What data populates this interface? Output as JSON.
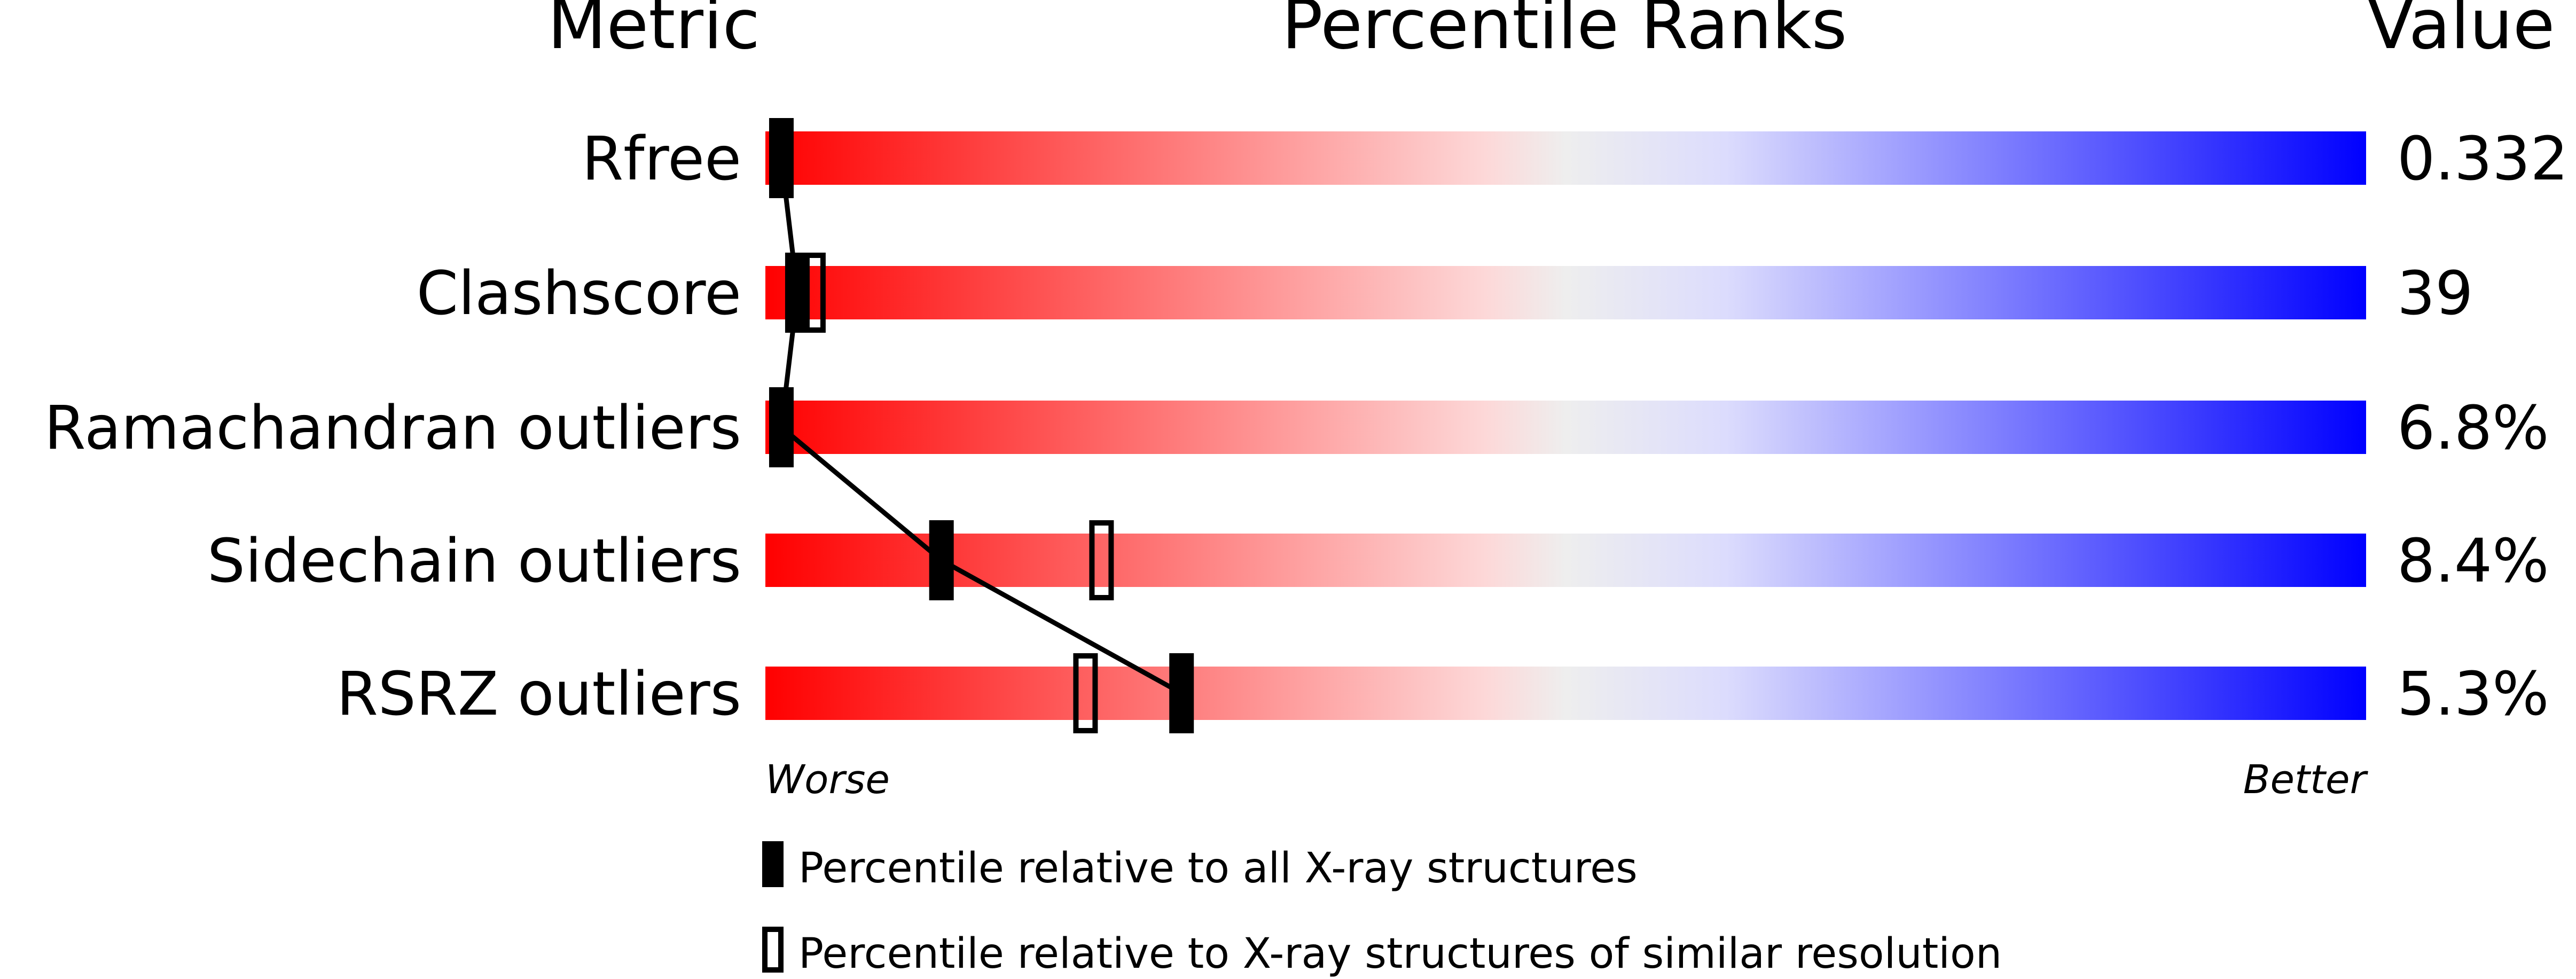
{
  "chart_data": {
    "type": "bar",
    "title": "Percentile Ranks",
    "column_headers": {
      "metric": "Metric",
      "ranks": "Percentile Ranks",
      "value": "Value"
    },
    "categories": [
      "Rfree",
      "Clashscore",
      "Ramachandran outliers",
      "Sidechain outliers",
      "RSRZ outliers"
    ],
    "values": [
      "0.332",
      "39",
      "6.8%",
      "8.4%",
      "5.3%"
    ],
    "series": [
      {
        "name": "Percentile relative to all X-ray structures",
        "marker": "filled",
        "percentiles": [
          1,
          2,
          1,
          11,
          26
        ]
      },
      {
        "name": "Percentile relative to X-ray structures of similar resolution",
        "marker": "open",
        "percentiles": [
          null,
          3,
          null,
          21,
          20
        ]
      }
    ],
    "xlim": [
      0,
      100
    ],
    "x_axis_labels": {
      "left": "Worse",
      "right": "Better"
    },
    "gradient_colors": [
      "#ff0000",
      "#fdd8d8",
      "#eeeeee",
      "#dcdcfd",
      "#0000ff"
    ],
    "legend_placement": "bottom"
  }
}
